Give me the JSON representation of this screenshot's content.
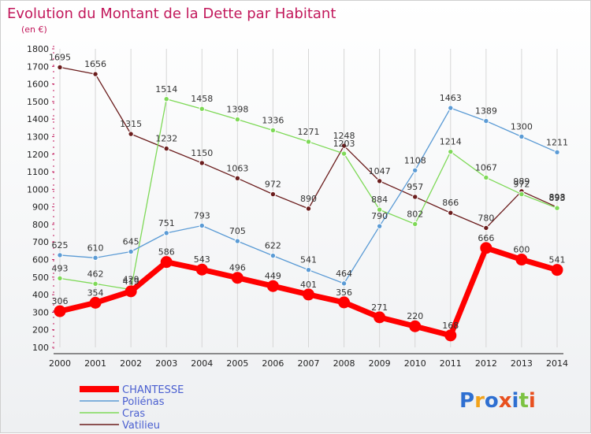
{
  "chart_data": {
    "type": "line",
    "title": "Evolution du Montant de la Dette par Habitant",
    "subtitle": "(en €)",
    "x": [
      "2000",
      "2001",
      "2002",
      "2003",
      "2004",
      "2005",
      "2006",
      "2007",
      "2008",
      "2009",
      "2010",
      "2011",
      "2012",
      "2013",
      "2014"
    ],
    "ylim": [
      100,
      1800
    ],
    "yticks": [
      100,
      200,
      300,
      400,
      500,
      600,
      700,
      800,
      900,
      1000,
      1100,
      1200,
      1300,
      1400,
      1500,
      1600,
      1700,
      1800
    ],
    "grid": "vertical",
    "legend_position": "bottom-left",
    "series": [
      {
        "name": "Vatilieu",
        "color": "#6b1d1d",
        "values": [
          1695,
          1656,
          1315,
          1232,
          1150,
          1063,
          972,
          890,
          1248,
          1047,
          957,
          866,
          780,
          989,
          898
        ],
        "labels": [
          "1695",
          "1656",
          "1315",
          "1232",
          "1150",
          "1063",
          "972",
          "890",
          "1248",
          "1047",
          "957",
          "866",
          "780",
          "989",
          "898"
        ]
      },
      {
        "name": "Cras",
        "color": "#7ed957",
        "values": [
          493,
          462,
          429,
          1514,
          1458,
          1398,
          1336,
          1271,
          1203,
          884,
          802,
          1214,
          1067,
          972,
          893
        ],
        "labels": [
          "493",
          "462",
          "429",
          "1514",
          "1458",
          "1398",
          "1336",
          "1271",
          "1203",
          "884",
          "802",
          "1214",
          "1067",
          "972",
          "893"
        ]
      },
      {
        "name": "Poliénas",
        "color": "#5b9bd5",
        "values": [
          625,
          610,
          645,
          751,
          793,
          705,
          622,
          541,
          464,
          790,
          1108,
          1463,
          1389,
          1300,
          1211
        ],
        "labels": [
          "625",
          "610",
          "645",
          "751",
          "793",
          "705",
          "622",
          "541",
          "464",
          "790",
          "1108",
          "1463",
          "1389",
          "1300",
          "1211"
        ]
      },
      {
        "name": "CHANTESSE",
        "color": "#ff0000",
        "values": [
          306,
          354,
          419,
          586,
          543,
          496,
          449,
          401,
          356,
          271,
          220,
          168,
          666,
          600,
          541
        ],
        "labels": [
          "306",
          "354",
          "419",
          "586",
          "543",
          "496",
          "449",
          "401",
          "356",
          "271",
          "220",
          "168",
          "666",
          "600",
          "541"
        ]
      }
    ]
  },
  "legend": {
    "items": [
      {
        "name": "CHANTESSE",
        "color": "#ff0000"
      },
      {
        "name": "Poliénas",
        "color": "#5b9bd5"
      },
      {
        "name": "Cras",
        "color": "#7ed957"
      },
      {
        "name": "Vatilieu",
        "color": "#6b1d1d"
      }
    ]
  },
  "logo": {
    "text": "Proxiti",
    "colors": [
      "#2e6fd1",
      "#f2a31b",
      "#2e6fd1",
      "#e8501f",
      "#2e6fd1",
      "#7cc242",
      "#e8501f"
    ]
  }
}
